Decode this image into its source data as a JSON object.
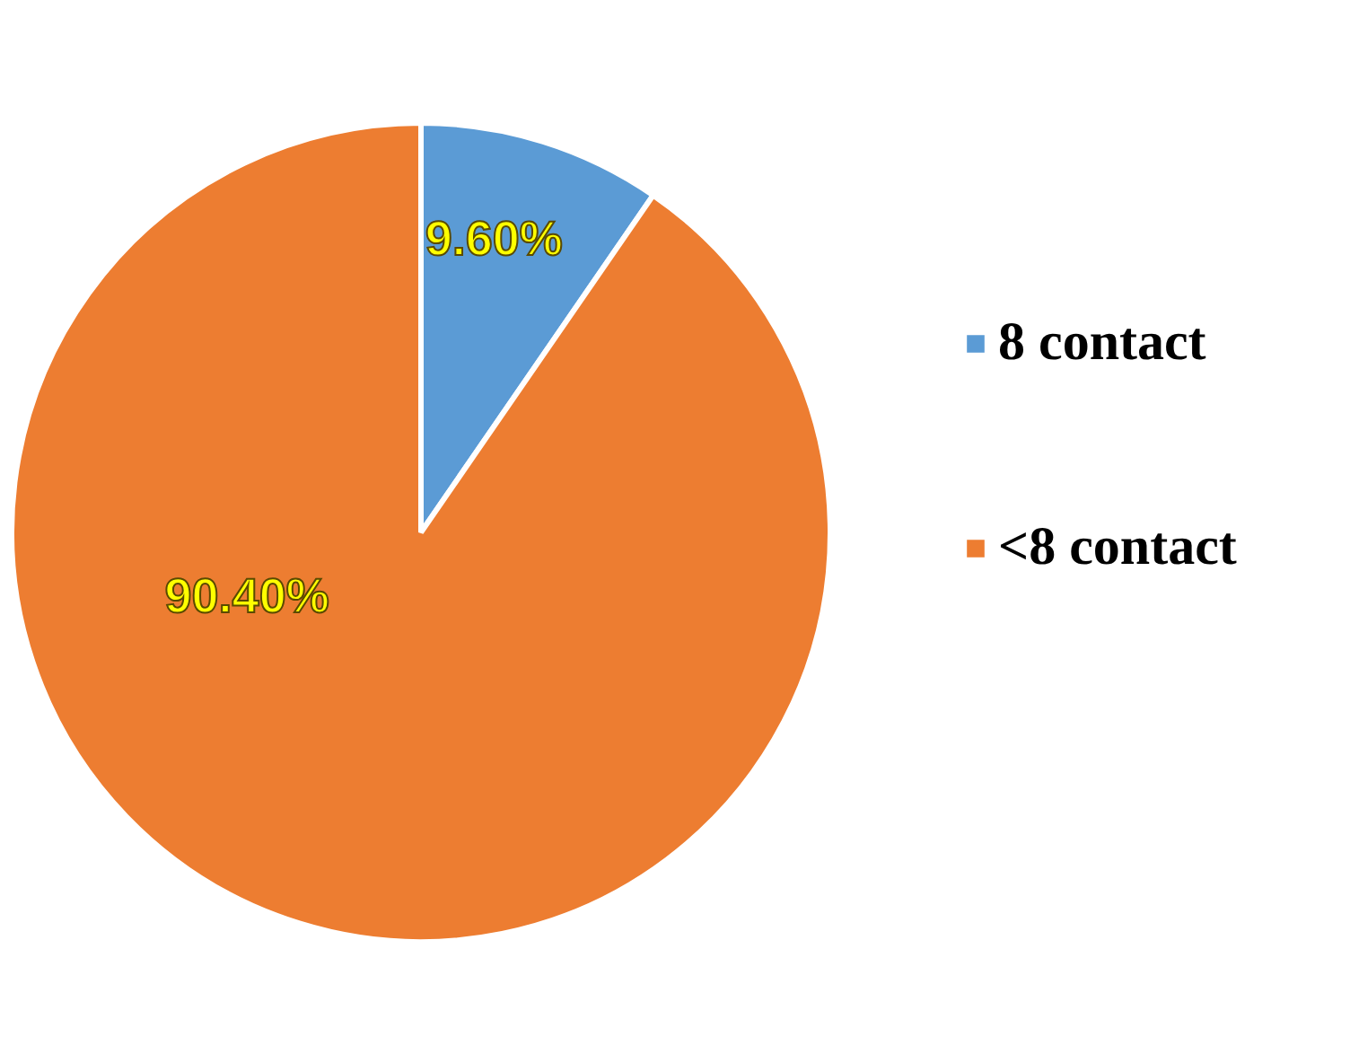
{
  "chart_data": {
    "type": "pie",
    "categories": [
      "8 contact",
      "<8 contact"
    ],
    "values": [
      9.6,
      90.4
    ],
    "colors": [
      "#5b9bd5",
      "#ed7d31"
    ],
    "value_labels": [
      "9.60%",
      "90.40%"
    ],
    "legend": "right"
  }
}
